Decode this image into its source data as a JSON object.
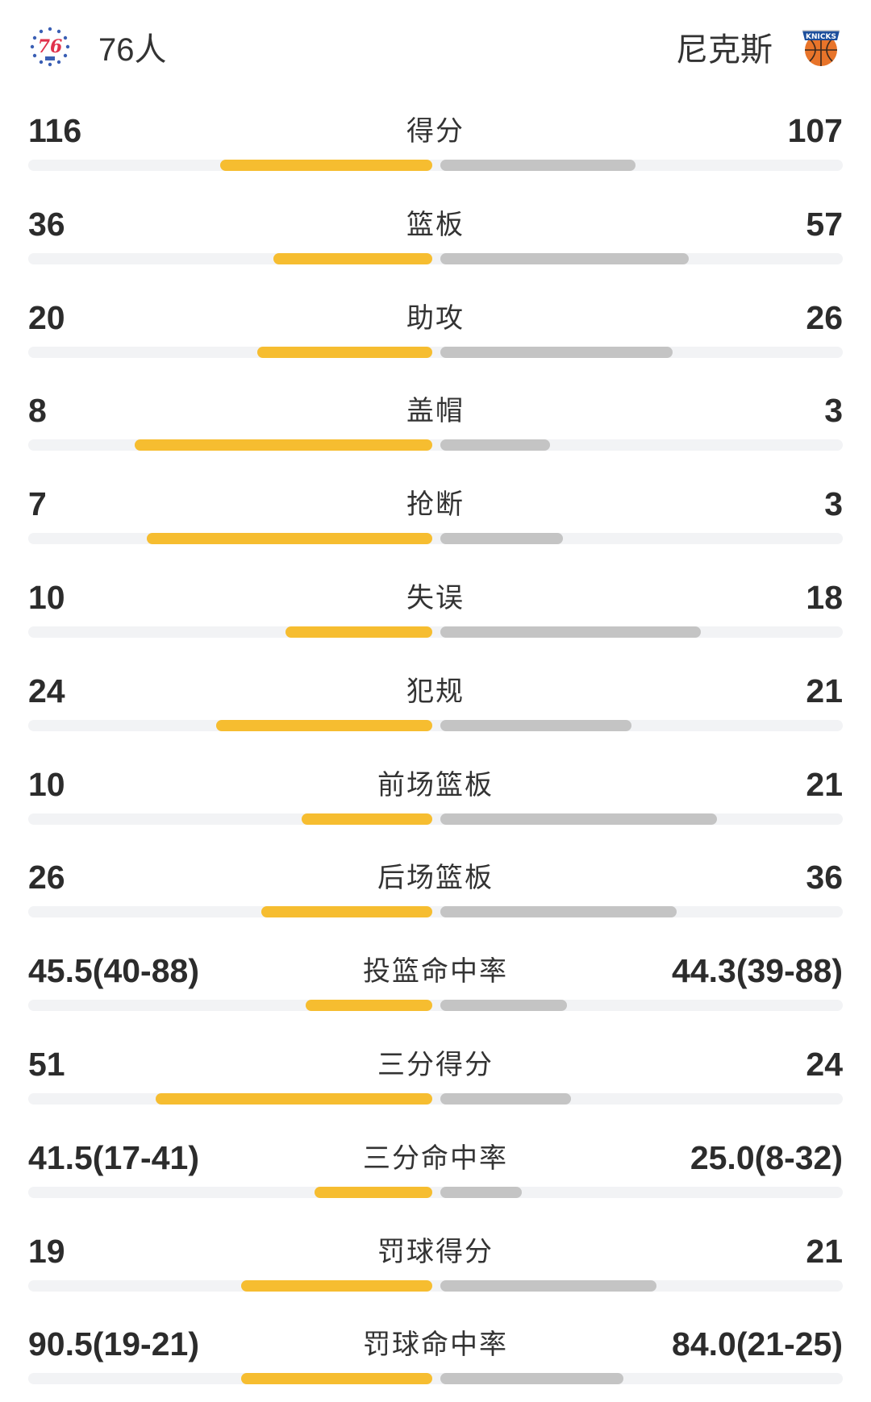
{
  "header": {
    "home": {
      "name": "76人",
      "logo_icon": "sixers-76-logo-icon"
    },
    "away": {
      "name": "尼克斯",
      "logo_icon": "knicks-basketball-logo-icon"
    }
  },
  "colors": {
    "home_bar": "#f6bd30",
    "away_bar": "#c4c4c4",
    "track": "#f2f3f5"
  },
  "stats": [
    {
      "label": "得分",
      "home": "116",
      "away": "107",
      "home_share": 0.52,
      "away_share": 0.48
    },
    {
      "label": "篮板",
      "home": "36",
      "away": "57",
      "home_share": 0.39,
      "away_share": 0.61
    },
    {
      "label": "助攻",
      "home": "20",
      "away": "26",
      "home_share": 0.43,
      "away_share": 0.57
    },
    {
      "label": "盖帽",
      "home": "8",
      "away": "3",
      "home_share": 0.73,
      "away_share": 0.27
    },
    {
      "label": "抢断",
      "home": "7",
      "away": "3",
      "home_share": 0.7,
      "away_share": 0.3
    },
    {
      "label": "失误",
      "home": "10",
      "away": "18",
      "home_share": 0.36,
      "away_share": 0.64
    },
    {
      "label": "犯规",
      "home": "24",
      "away": "21",
      "home_share": 0.53,
      "away_share": 0.47
    },
    {
      "label": "前场篮板",
      "home": "10",
      "away": "21",
      "home_share": 0.32,
      "away_share": 0.68
    },
    {
      "label": "后场篮板",
      "home": "26",
      "away": "36",
      "home_share": 0.42,
      "away_share": 0.58
    },
    {
      "label": "投篮命中率",
      "home": "45.5(40-88)",
      "away": "44.3(39-88)",
      "home_share": 0.31,
      "away_share": 0.31
    },
    {
      "label": "三分得分",
      "home": "51",
      "away": "24",
      "home_share": 0.68,
      "away_share": 0.32
    },
    {
      "label": "三分命中率",
      "home": "41.5(17-41)",
      "away": "25.0(8-32)",
      "home_share": 0.29,
      "away_share": 0.2
    },
    {
      "label": "罚球得分",
      "home": "19",
      "away": "21",
      "home_share": 0.47,
      "away_share": 0.53
    },
    {
      "label": "罚球命中率",
      "home": "90.5(19-21)",
      "away": "84.0(21-25)",
      "home_share": 0.47,
      "away_share": 0.45
    }
  ]
}
